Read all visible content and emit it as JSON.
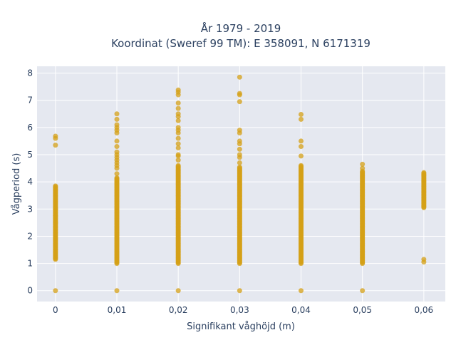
{
  "chart_data": {
    "type": "scatter",
    "title": "År 1979 - 2019",
    "subtitle": "Koordinat (Sweref 99 TM): E 358091, N 6171319",
    "xlabel": "Signifikant våghöjd (m)",
    "ylabel": "Vågperiod (s)",
    "x_ticks": [
      "0",
      "0,01",
      "0,02",
      "0,03",
      "0,04",
      "0,05",
      "0,06"
    ],
    "y_ticks": [
      "0",
      "1",
      "2",
      "3",
      "4",
      "5",
      "6",
      "7",
      "8"
    ],
    "xlim": [
      -0.003,
      0.0635
    ],
    "ylim": [
      -0.4,
      8.25
    ],
    "grid": true,
    "legend": "none",
    "marker_color": "#D4A017",
    "plot_bg": "#E5E8F0",
    "series": [
      {
        "x": 0,
        "y_range": [
          1.15,
          3.85
        ],
        "points": [
          0,
          5.35,
          5.6,
          5.68,
          2.75,
          2.5,
          3.0
        ]
      },
      {
        "x": 0.01,
        "y_range": [
          1.0,
          4.15
        ],
        "points": [
          0,
          4.3,
          4.5,
          4.6,
          4.7,
          4.8,
          4.9,
          5.0,
          5.1,
          5.3,
          5.5,
          5.8,
          5.9,
          6.0,
          6.1,
          6.3,
          6.5
        ]
      },
      {
        "x": 0.02,
        "y_range": [
          1.0,
          4.6
        ],
        "points": [
          0,
          4.8,
          4.95,
          5.0,
          5.25,
          5.4,
          5.6,
          5.8,
          5.9,
          6.0,
          6.25,
          6.4,
          6.5,
          6.7,
          6.9,
          7.2,
          7.3,
          7.38
        ]
      },
      {
        "x": 0.03,
        "y_range": [
          1.0,
          4.55
        ],
        "points": [
          0,
          4.7,
          4.9,
          5.0,
          5.2,
          5.4,
          5.5,
          5.8,
          5.9,
          6.95,
          7.2,
          7.25,
          7.85
        ]
      },
      {
        "x": 0.04,
        "y_range": [
          1.0,
          4.6
        ],
        "points": [
          0,
          4.95,
          5.3,
          5.5,
          6.3,
          6.48
        ]
      },
      {
        "x": 0.05,
        "y_range": [
          1.0,
          4.4
        ],
        "points": [
          0,
          4.5,
          4.65
        ]
      },
      {
        "x": 0.06,
        "y_range": [
          3.05,
          4.35
        ],
        "points": [
          1.05,
          1.15
        ]
      }
    ]
  }
}
